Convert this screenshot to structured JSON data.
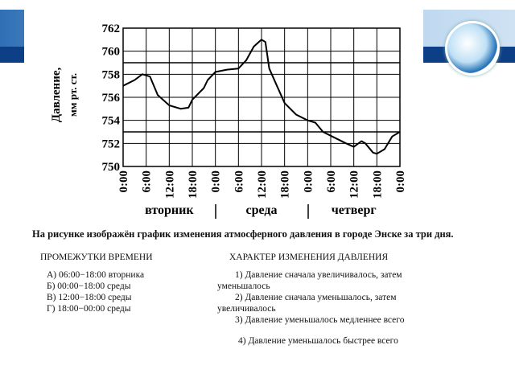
{
  "chart_data": {
    "type": "line",
    "ylabel": [
      "Давление,",
      "мм рт. ст."
    ],
    "x": [
      0,
      3,
      5,
      7,
      9,
      12,
      15,
      17,
      18,
      21,
      22,
      24,
      27,
      30,
      32,
      34,
      36,
      37,
      38,
      40,
      42,
      45,
      48,
      50,
      52,
      55,
      58,
      60,
      62,
      63,
      65,
      66,
      68,
      70,
      72
    ],
    "values": [
      757.0,
      757.5,
      758.0,
      757.8,
      756.2,
      755.3,
      755.0,
      755.1,
      755.8,
      756.8,
      757.5,
      758.2,
      758.4,
      758.5,
      759.2,
      760.4,
      761.0,
      760.8,
      758.5,
      757.0,
      755.5,
      754.5,
      754.0,
      753.8,
      753.0,
      752.5,
      752.0,
      751.7,
      752.2,
      752.0,
      751.2,
      751.1,
      751.5,
      752.6,
      753.0
    ],
    "color": "#000000",
    "xlim": [
      0,
      72
    ],
    "xticks": [
      {
        "value": 0,
        "label": "0:00"
      },
      {
        "value": 6,
        "label": "6:00"
      },
      {
        "value": 12,
        "label": "12:00"
      },
      {
        "value": 18,
        "label": "18:00"
      },
      {
        "value": 24,
        "label": "0:00"
      },
      {
        "value": 30,
        "label": "6:00"
      },
      {
        "value": 36,
        "label": "12:00"
      },
      {
        "value": 42,
        "label": "18:00"
      },
      {
        "value": 48,
        "label": "0:00"
      },
      {
        "value": 54,
        "label": "6:00"
      },
      {
        "value": 60,
        "label": "12:00"
      },
      {
        "value": 66,
        "label": "18:00"
      },
      {
        "value": 72,
        "label": "0:00"
      }
    ],
    "ylim": [
      750,
      762
    ],
    "yticks": [
      750,
      752,
      754,
      756,
      758,
      760,
      762
    ],
    "reference_lines": [
      753,
      759
    ],
    "day_labels": [
      "вторник",
      "среда",
      "четверг"
    ],
    "grid": true
  },
  "text": {
    "intro": "На рисунке изображён график изменения атмосферного давления в городе Энске за три дня.",
    "left_header": "ПРОМЕЖУТКИ ВРЕМЕНИ",
    "right_header": "ХАРАКТЕР ИЗМЕНЕНИЯ ДАВЛЕНИЯ",
    "left_items": [
      "А) 06:00−18:00 вторника",
      "Б) 00:00−18:00 среды",
      "В) 12:00−18:00 среды",
      "Г) 18:00−00:00 среды"
    ],
    "right_items": [
      "1) Давление сначала увеличивалось, затем уменьшалось",
      "2) Давление сначала уменьшалось, затем увеличивалось",
      "3) Давление уменьшалось медленнее всего",
      "4) Давление уменьшалось быстрее всего"
    ]
  }
}
